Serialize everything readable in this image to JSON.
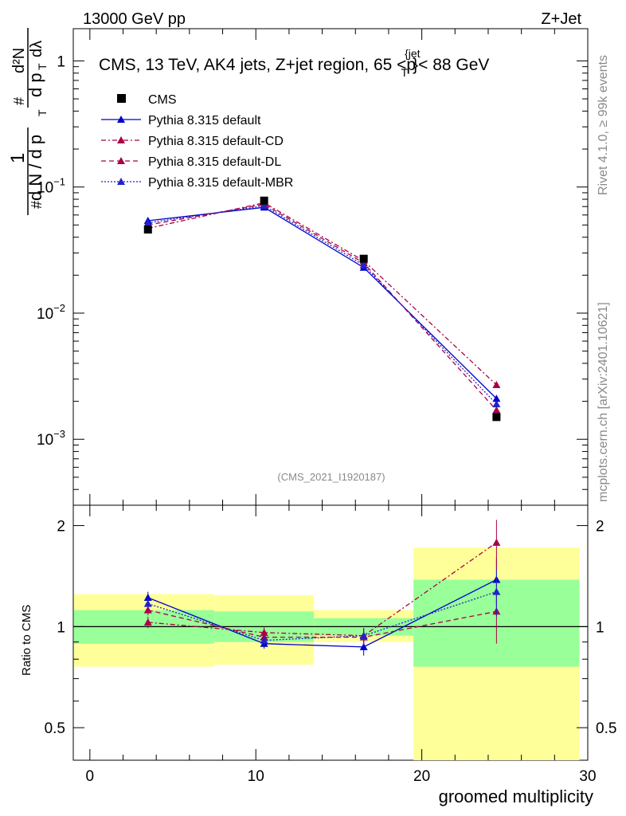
{
  "header": {
    "left": "13000 GeV pp",
    "right": "Z+Jet"
  },
  "side_text": {
    "rivet": "Rivet 4.1.0, ≥ 99k events",
    "mcplots": "mcplots.cern.ch [arXiv:2401.10621]"
  },
  "chart_data": {
    "type": "line",
    "title_main": "CMS, 13 TeV, AK4 jets, Z+jet region, 65 <p",
    "title_sup": "{jet",
    "title_sub": "T",
    "title_tail": "}< 88 GeV",
    "watermark": "(CMS_2021_I1920187)",
    "xlabel": "groomed multiplicity",
    "ratio_ylabel": "Ratio to CMS",
    "ylabel_parts": [
      "1",
      "#",
      "d N / d p",
      "T",
      "#",
      "d p",
      "T",
      "dλ",
      "d²N"
    ],
    "xlim": [
      -1,
      30
    ],
    "ylim_main": [
      0.0003,
      1.8
    ],
    "ylim_ratio": [
      0.4,
      2.3
    ],
    "x_ticks": [
      0,
      10,
      20,
      30
    ],
    "x_tick_labels": [
      "0",
      "10",
      "20",
      "30"
    ],
    "main_y_ticks": [
      1,
      0.1,
      0.01,
      0.001
    ],
    "main_y_tick_labels": [
      {
        "base": "1",
        "exp": ""
      },
      {
        "base": "10",
        "exp": "−1"
      },
      {
        "base": "10",
        "exp": "−2"
      },
      {
        "base": "10",
        "exp": "−3"
      }
    ],
    "ratio_y_ticks": [
      2,
      1,
      0.5
    ],
    "ratio_y_tick_labels": [
      "2",
      "1",
      "0.5"
    ],
    "bins": [
      [
        -1,
        7.5
      ],
      [
        7.5,
        13.5
      ],
      [
        13.5,
        19.5
      ],
      [
        19.5,
        29.5
      ]
    ],
    "data": {
      "name": "CMS",
      "x": [
        3.5,
        10.5,
        16.5,
        24.5
      ],
      "y": [
        0.046,
        0.078,
        0.027,
        0.0015
      ],
      "color": "#000000"
    },
    "series": [
      {
        "name": "Pythia 8.315 default",
        "color": "#0000cc",
        "dash": "",
        "y": [
          0.054,
          0.069,
          0.023,
          0.0021
        ],
        "ratio": [
          1.22,
          0.89,
          0.87,
          1.38
        ],
        "ratio_err": [
          0.05,
          0.03,
          0.05,
          0.22
        ]
      },
      {
        "name": "Pythia 8.315 default-CD",
        "color": "#aa0044",
        "dash": "6,3,2,3",
        "y": [
          0.047,
          0.075,
          0.026,
          0.0027
        ],
        "ratio": [
          1.03,
          0.96,
          0.94,
          1.78
        ],
        "ratio_err": [
          0.04,
          0.04,
          0.05,
          0.3
        ]
      },
      {
        "name": "Pythia 8.315 default-DL",
        "color": "#aa0044",
        "dash": "6,4",
        "y": [
          0.05,
          0.073,
          0.025,
          0.0017
        ],
        "ratio": [
          1.12,
          0.93,
          0.93,
          1.11
        ],
        "ratio_err": [
          0.04,
          0.04,
          0.05,
          0.22
        ]
      },
      {
        "name": "Pythia 8.315 default-MBR",
        "color": "#2222cc",
        "dash": "2,2",
        "y": [
          0.052,
          0.071,
          0.024,
          0.0019
        ],
        "ratio": [
          1.17,
          0.91,
          0.94,
          1.27
        ],
        "ratio_err": [
          0.05,
          0.03,
          0.05,
          0.2
        ]
      }
    ],
    "ratio_bands": {
      "green": [
        [
          0.89,
          1.12
        ],
        [
          0.9,
          1.11
        ],
        [
          0.94,
          1.06
        ],
        [
          0.76,
          1.38
        ]
      ],
      "yellow": [
        [
          0.76,
          1.25
        ],
        [
          0.77,
          1.24
        ],
        [
          0.9,
          1.12
        ],
        [
          0.3,
          1.72
        ]
      ]
    }
  }
}
